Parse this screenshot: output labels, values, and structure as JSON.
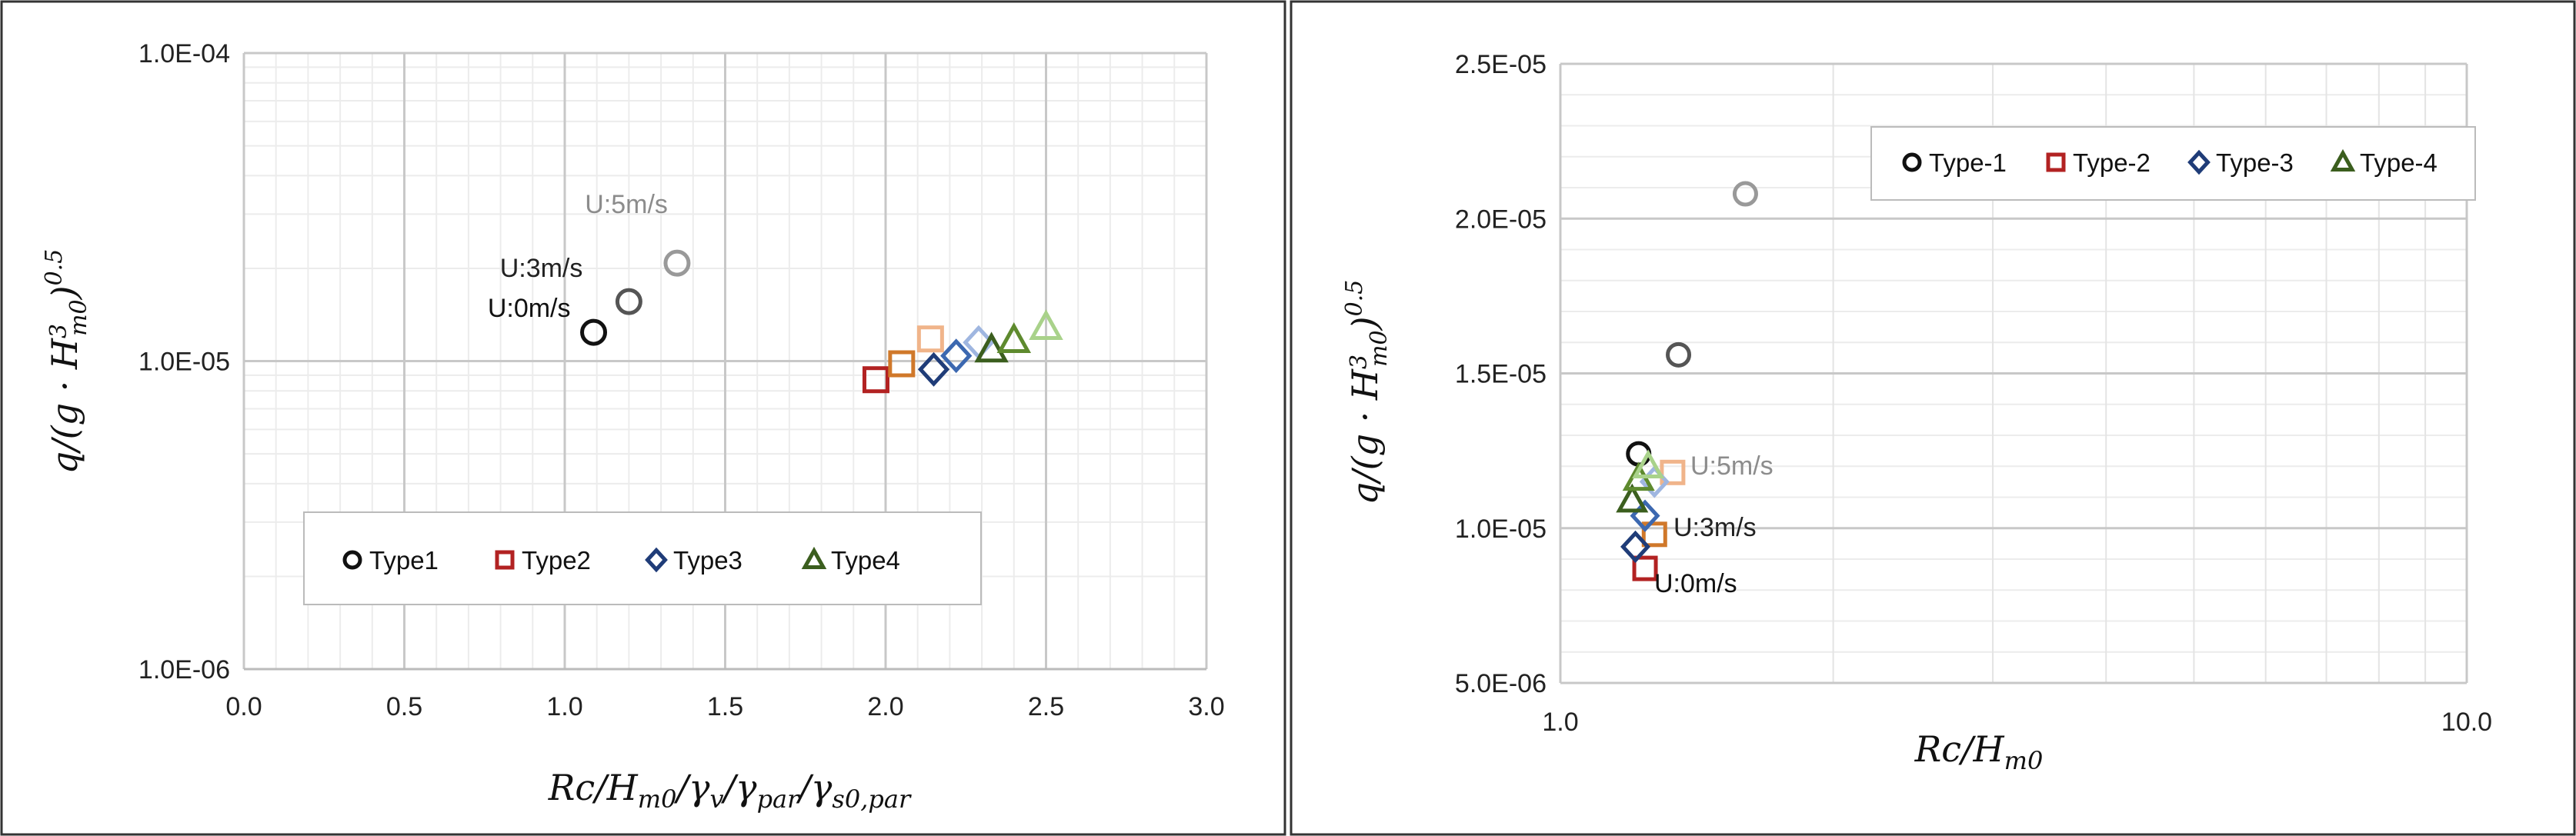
{
  "colors": {
    "type1": [
      "#111111",
      "#555555",
      "#999999"
    ],
    "type2": [
      "#b22222",
      "#d0782a",
      "#f0b48a"
    ],
    "type3": [
      "#1f3c78",
      "#3c68b0",
      "#9fb6e0"
    ],
    "type4": [
      "#3b5e1e",
      "#5e8a2e",
      "#a9d28a"
    ]
  },
  "chart_data": [
    {
      "type": "scatter",
      "xlabel": "Rc/H_m0/γ_v/γ_par/γ_s0,par",
      "ylabel": "q/(g·H_m0^3)^0.5",
      "xlim": [
        0.0,
        3.0
      ],
      "ylim": [
        1e-06,
        0.0001
      ],
      "yscale": "log",
      "xtick_labels": [
        "0.0",
        "0.5",
        "1.0",
        "1.5",
        "2.0",
        "2.5",
        "3.0"
      ],
      "ytick_labels": [
        "1.0E-06",
        "1.0E-05",
        "1.0E-04"
      ],
      "grid": true,
      "legend_position": "bottom-center",
      "legend": [
        "Type1",
        "Type2",
        "Type3",
        "Type4"
      ],
      "annotations": [
        "U:0m/s",
        "U:3m/s",
        "U:5m/s"
      ],
      "series": [
        {
          "name": "Type1",
          "marker": "circle",
          "x": [
            1.09,
            1.2,
            1.35
          ],
          "y": [
            1.24e-05,
            1.56e-05,
            2.08e-05
          ],
          "wind": [
            "U:0m/s",
            "U:3m/s",
            "U:5m/s"
          ]
        },
        {
          "name": "Type2",
          "marker": "square",
          "x": [
            1.97,
            2.05,
            2.14
          ],
          "y": [
            8.7e-06,
            9.8e-06,
            1.18e-05
          ],
          "wind": [
            "U:0m/s",
            "U:3m/s",
            "U:5m/s"
          ]
        },
        {
          "name": "Type3",
          "marker": "diamond",
          "x": [
            2.15,
            2.22,
            2.29
          ],
          "y": [
            9.4e-06,
            1.04e-05,
            1.15e-05
          ],
          "wind": [
            "U:0m/s",
            "U:3m/s",
            "U:5m/s"
          ]
        },
        {
          "name": "Type4",
          "marker": "triangle",
          "x": [
            2.33,
            2.4,
            2.5
          ],
          "y": [
            1.09e-05,
            1.17e-05,
            1.29e-05
          ],
          "wind": [
            "U:0m/s",
            "U:3m/s",
            "U:5m/s"
          ]
        }
      ]
    },
    {
      "type": "scatter",
      "xlabel": "Rc/H_m0",
      "ylabel": "q/(g·H_m0^3)^0.5",
      "xlim": [
        1.0,
        10.0
      ],
      "xscale": "log",
      "ylim": [
        5e-06,
        2.5e-05
      ],
      "xtick_labels": [
        "1.0",
        "10.0"
      ],
      "ytick_labels": [
        "5.0E-06",
        "1.0E-05",
        "1.5E-05",
        "2.0E-05",
        "2.5E-05"
      ],
      "grid": true,
      "legend_position": "top-right",
      "legend": [
        "Type-1",
        "Type-2",
        "Type-3",
        "Type-4"
      ],
      "annotations": [
        "U:0m/s",
        "U:3m/s",
        "U:5m/s"
      ],
      "series": [
        {
          "name": "Type-1",
          "marker": "circle",
          "x": [
            1.22,
            1.35,
            1.6
          ],
          "y": [
            1.24e-05,
            1.56e-05,
            2.08e-05
          ],
          "wind": [
            "U:0m/s",
            "U:3m/s",
            "U:5m/s"
          ]
        },
        {
          "name": "Type-2",
          "marker": "square",
          "x": [
            1.24,
            1.27,
            1.33
          ],
          "y": [
            8.7e-06,
            9.8e-06,
            1.18e-05
          ],
          "wind": [
            "U:0m/s",
            "U:3m/s",
            "U:5m/s"
          ]
        },
        {
          "name": "Type-3",
          "marker": "diamond",
          "x": [
            1.21,
            1.24,
            1.27
          ],
          "y": [
            9.4e-06,
            1.04e-05,
            1.15e-05
          ],
          "wind": [
            "U:0m/s",
            "U:3m/s",
            "U:5m/s"
          ]
        },
        {
          "name": "Type-4",
          "marker": "triangle",
          "x": [
            1.2,
            1.22,
            1.25
          ],
          "y": [
            1.09e-05,
            1.16e-05,
            1.2e-05
          ],
          "wind": [
            "U:0m/s",
            "U:3m/s",
            "U:5m/s"
          ]
        }
      ]
    }
  ]
}
